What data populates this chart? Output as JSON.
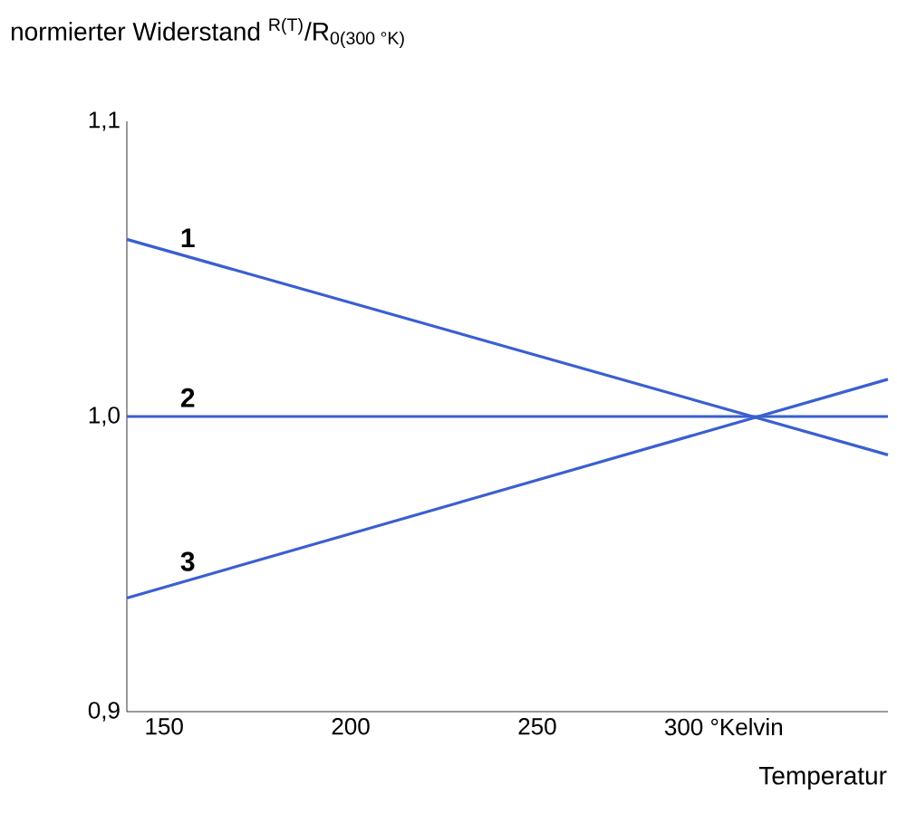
{
  "chart_data": {
    "type": "line",
    "ylabel": "normierter Widerstand $^{R(T)}$/R$_{0(300 °K)}$",
    "xlabel": "Temperatur",
    "xlim": [
      140,
      344
    ],
    "ylim": [
      0.9,
      1.1
    ],
    "xticks": [
      150,
      200,
      250,
      {
        "value": 300,
        "label": "300 °Kelvin"
      }
    ],
    "yticks": [
      {
        "value": 0.9,
        "label": "0,9"
      },
      {
        "value": 1.0,
        "label": "1,0"
      },
      {
        "value": 1.1,
        "label": "1,1"
      }
    ],
    "grid": false,
    "legend": false,
    "marker": "none",
    "line_style": "solid",
    "x": [
      140,
      344
    ],
    "series": [
      {
        "name": "1",
        "color": "#3a5fd0",
        "values": [
          1.06,
          0.987
        ]
      },
      {
        "name": "2",
        "color": "#3a5fd0",
        "values": [
          1.0,
          1.0
        ]
      },
      {
        "name": "3",
        "color": "#3a5fd0",
        "values": [
          0.9385,
          1.0126
        ]
      }
    ]
  }
}
